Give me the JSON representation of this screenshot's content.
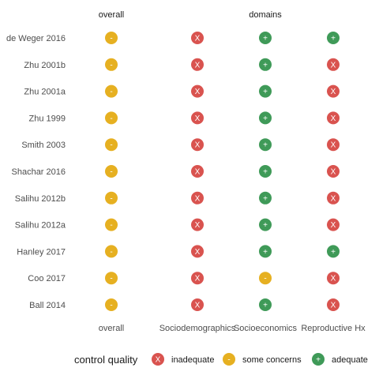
{
  "chart_data": {
    "type": "table",
    "header_left": "overall",
    "header_right": "domains",
    "studies": [
      "de Weger 2016",
      "Zhu 2001b",
      "Zhu 2001a",
      "Zhu 1999",
      "Smith 2003",
      "Shachar 2016",
      "Salihu 2012b",
      "Salihu 2012a",
      "Hanley 2017",
      "Coo 2017",
      "Ball 2014"
    ],
    "columns": [
      "overall",
      "Sociodemographics",
      "Socioeconomics",
      "Reproductive Hx"
    ],
    "ratings": [
      [
        "some concerns",
        "inadequate",
        "adequate",
        "adequate"
      ],
      [
        "some concerns",
        "inadequate",
        "adequate",
        "inadequate"
      ],
      [
        "some concerns",
        "inadequate",
        "adequate",
        "inadequate"
      ],
      [
        "some concerns",
        "inadequate",
        "adequate",
        "inadequate"
      ],
      [
        "some concerns",
        "inadequate",
        "adequate",
        "inadequate"
      ],
      [
        "some concerns",
        "inadequate",
        "adequate",
        "inadequate"
      ],
      [
        "some concerns",
        "inadequate",
        "adequate",
        "inadequate"
      ],
      [
        "some concerns",
        "inadequate",
        "adequate",
        "inadequate"
      ],
      [
        "some concerns",
        "inadequate",
        "adequate",
        "adequate"
      ],
      [
        "some concerns",
        "inadequate",
        "some concerns",
        "inadequate"
      ],
      [
        "some concerns",
        "inadequate",
        "adequate",
        "inadequate"
      ]
    ],
    "legend": {
      "title": "control quality",
      "position": "bottom",
      "items": [
        {
          "label": "inadequate",
          "symbol": "X",
          "color": "#d9534f"
        },
        {
          "label": "some concerns",
          "symbol": "-",
          "color": "#e6b021"
        },
        {
          "label": "adequate",
          "symbol": "+",
          "color": "#3f9a58"
        }
      ]
    },
    "grid": false
  }
}
